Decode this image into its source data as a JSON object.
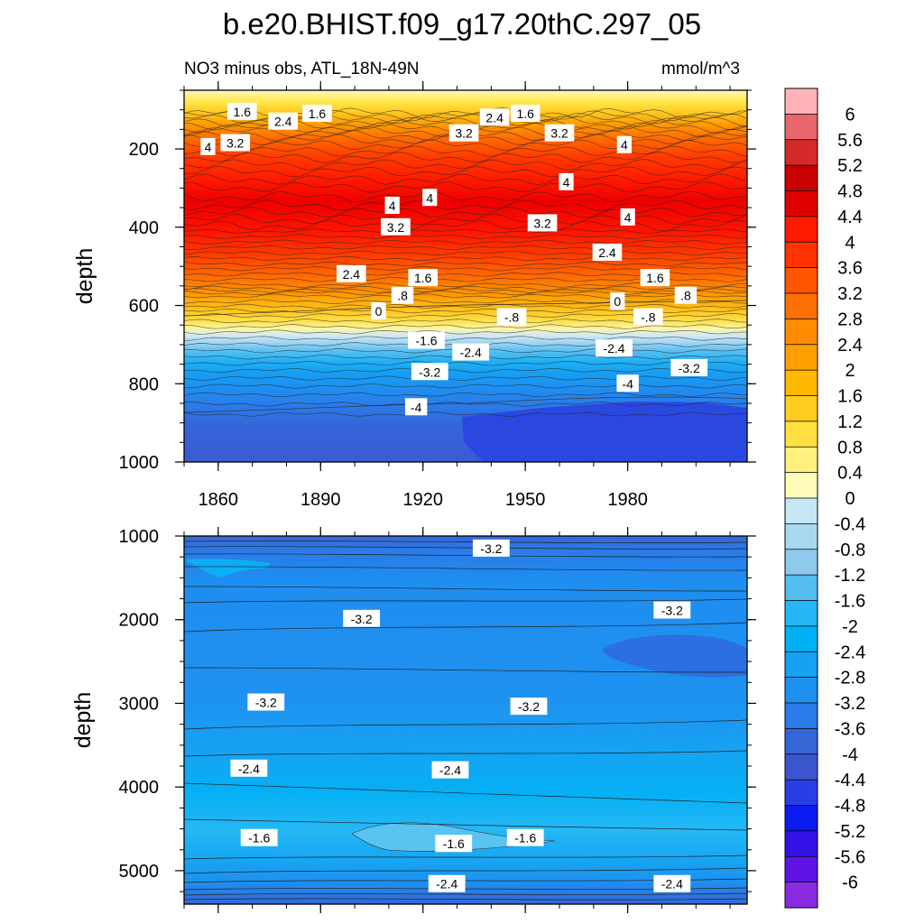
{
  "chart_data": {
    "type": "heatmap",
    "title": "b.e20.BHIST.f09_g17.20thC.297_05",
    "subtitle_left": "NO3 minus obs, ATL_18N-49N",
    "units": "mmol/m^3",
    "panels": [
      {
        "name": "upper",
        "ylabel": "depth",
        "xlim": [
          1850,
          2015
        ],
        "ylim": [
          1000,
          50
        ],
        "x_ticks": [
          "1860",
          "1890",
          "1920",
          "1950",
          "1980"
        ],
        "y_ticks": [
          "200",
          "400",
          "600",
          "800",
          "1000"
        ],
        "contour_labels": [
          {
            "x": 1867,
            "y": 105,
            "text": "1.6"
          },
          {
            "x": 1879,
            "y": 130,
            "text": "2.4"
          },
          {
            "x": 1865,
            "y": 185,
            "text": "3.2"
          },
          {
            "x": 1857,
            "y": 195,
            "text": "4"
          },
          {
            "x": 1889,
            "y": 110,
            "text": "1.6"
          },
          {
            "x": 1932,
            "y": 160,
            "text": "3.2"
          },
          {
            "x": 1941,
            "y": 120,
            "text": "2.4"
          },
          {
            "x": 1950,
            "y": 110,
            "text": "1.6"
          },
          {
            "x": 1960,
            "y": 160,
            "text": "3.2"
          },
          {
            "x": 1979,
            "y": 190,
            "text": "4"
          },
          {
            "x": 1962,
            "y": 285,
            "text": "4"
          },
          {
            "x": 1922,
            "y": 325,
            "text": "4"
          },
          {
            "x": 1911,
            "y": 345,
            "text": "4"
          },
          {
            "x": 1980,
            "y": 375,
            "text": "4"
          },
          {
            "x": 1912,
            "y": 400,
            "text": "3.2"
          },
          {
            "x": 1955,
            "y": 390,
            "text": "3.2"
          },
          {
            "x": 1899,
            "y": 520,
            "text": "2.4"
          },
          {
            "x": 1920,
            "y": 530,
            "text": "1.6"
          },
          {
            "x": 1974,
            "y": 465,
            "text": "2.4"
          },
          {
            "x": 1988,
            "y": 530,
            "text": "1.6"
          },
          {
            "x": 1914,
            "y": 575,
            "text": ".8"
          },
          {
            "x": 1997,
            "y": 575,
            "text": ".8"
          },
          {
            "x": 1907,
            "y": 615,
            "text": "0"
          },
          {
            "x": 1977,
            "y": 590,
            "text": "0"
          },
          {
            "x": 1946,
            "y": 630,
            "text": "-.8"
          },
          {
            "x": 1986,
            "y": 630,
            "text": "-.8"
          },
          {
            "x": 1921,
            "y": 690,
            "text": "-1.6"
          },
          {
            "x": 1934,
            "y": 720,
            "text": "-2.4"
          },
          {
            "x": 1976,
            "y": 710,
            "text": "-2.4"
          },
          {
            "x": 1922,
            "y": 770,
            "text": "-3.2"
          },
          {
            "x": 1998,
            "y": 760,
            "text": "-3.2"
          },
          {
            "x": 1980,
            "y": 800,
            "text": "-4"
          },
          {
            "x": 1918,
            "y": 860,
            "text": "-4"
          }
        ]
      },
      {
        "name": "lower",
        "ylabel": "depth",
        "xlim": [
          1850,
          2015
        ],
        "ylim": [
          5400,
          1000
        ],
        "x_ticks": [],
        "y_ticks": [
          "1000",
          "2000",
          "3000",
          "4000",
          "5000"
        ],
        "contour_labels": [
          {
            "x": 1940,
            "y": 1150,
            "text": "-3.2"
          },
          {
            "x": 1902,
            "y": 1990,
            "text": "-3.2"
          },
          {
            "x": 1993,
            "y": 1890,
            "text": "-3.2"
          },
          {
            "x": 1874,
            "y": 2990,
            "text": "-3.2"
          },
          {
            "x": 1951,
            "y": 3040,
            "text": "-3.2"
          },
          {
            "x": 1869,
            "y": 3780,
            "text": "-2.4"
          },
          {
            "x": 1928,
            "y": 3800,
            "text": "-2.4"
          },
          {
            "x": 1872,
            "y": 4610,
            "text": "-1.6"
          },
          {
            "x": 1929,
            "y": 4680,
            "text": "-1.6"
          },
          {
            "x": 1950,
            "y": 4610,
            "text": "-1.6"
          },
          {
            "x": 1927,
            "y": 5160,
            "text": "-2.4"
          },
          {
            "x": 1993,
            "y": 5160,
            "text": "-2.4"
          }
        ]
      }
    ],
    "colorbar": {
      "labels": [
        "6",
        "5.6",
        "5.2",
        "4.8",
        "4.4",
        "4",
        "3.6",
        "3.2",
        "2.8",
        "2.4",
        "2",
        "1.6",
        "1.2",
        "0.8",
        "0.4",
        "0",
        "-0.4",
        "-0.8",
        "-1.2",
        "-1.6",
        "-2",
        "-2.4",
        "-2.8",
        "-3.2",
        "-3.6",
        "-4",
        "-4.4",
        "-4.8",
        "-5.2",
        "-5.6",
        "-6"
      ],
      "colors": [
        "#ffb3b8",
        "#e8676c",
        "#d42a2a",
        "#c80000",
        "#e00000",
        "#ff1a00",
        "#ff3300",
        "#ff5500",
        "#ff7000",
        "#ff8c00",
        "#ffa000",
        "#ffb800",
        "#ffcc20",
        "#ffe040",
        "#fff080",
        "#fffbb8",
        "#c5e6f4",
        "#a8d8f0",
        "#8ec9ee",
        "#55bdf0",
        "#25b6f5",
        "#00b0f5",
        "#16a2f2",
        "#1e90f0",
        "#2b7bea",
        "#3566d8",
        "#3c56cf",
        "#2a3ee6",
        "#0a1cf2",
        "#3312e8",
        "#5f14e5",
        "#8a2be2"
      ]
    }
  }
}
